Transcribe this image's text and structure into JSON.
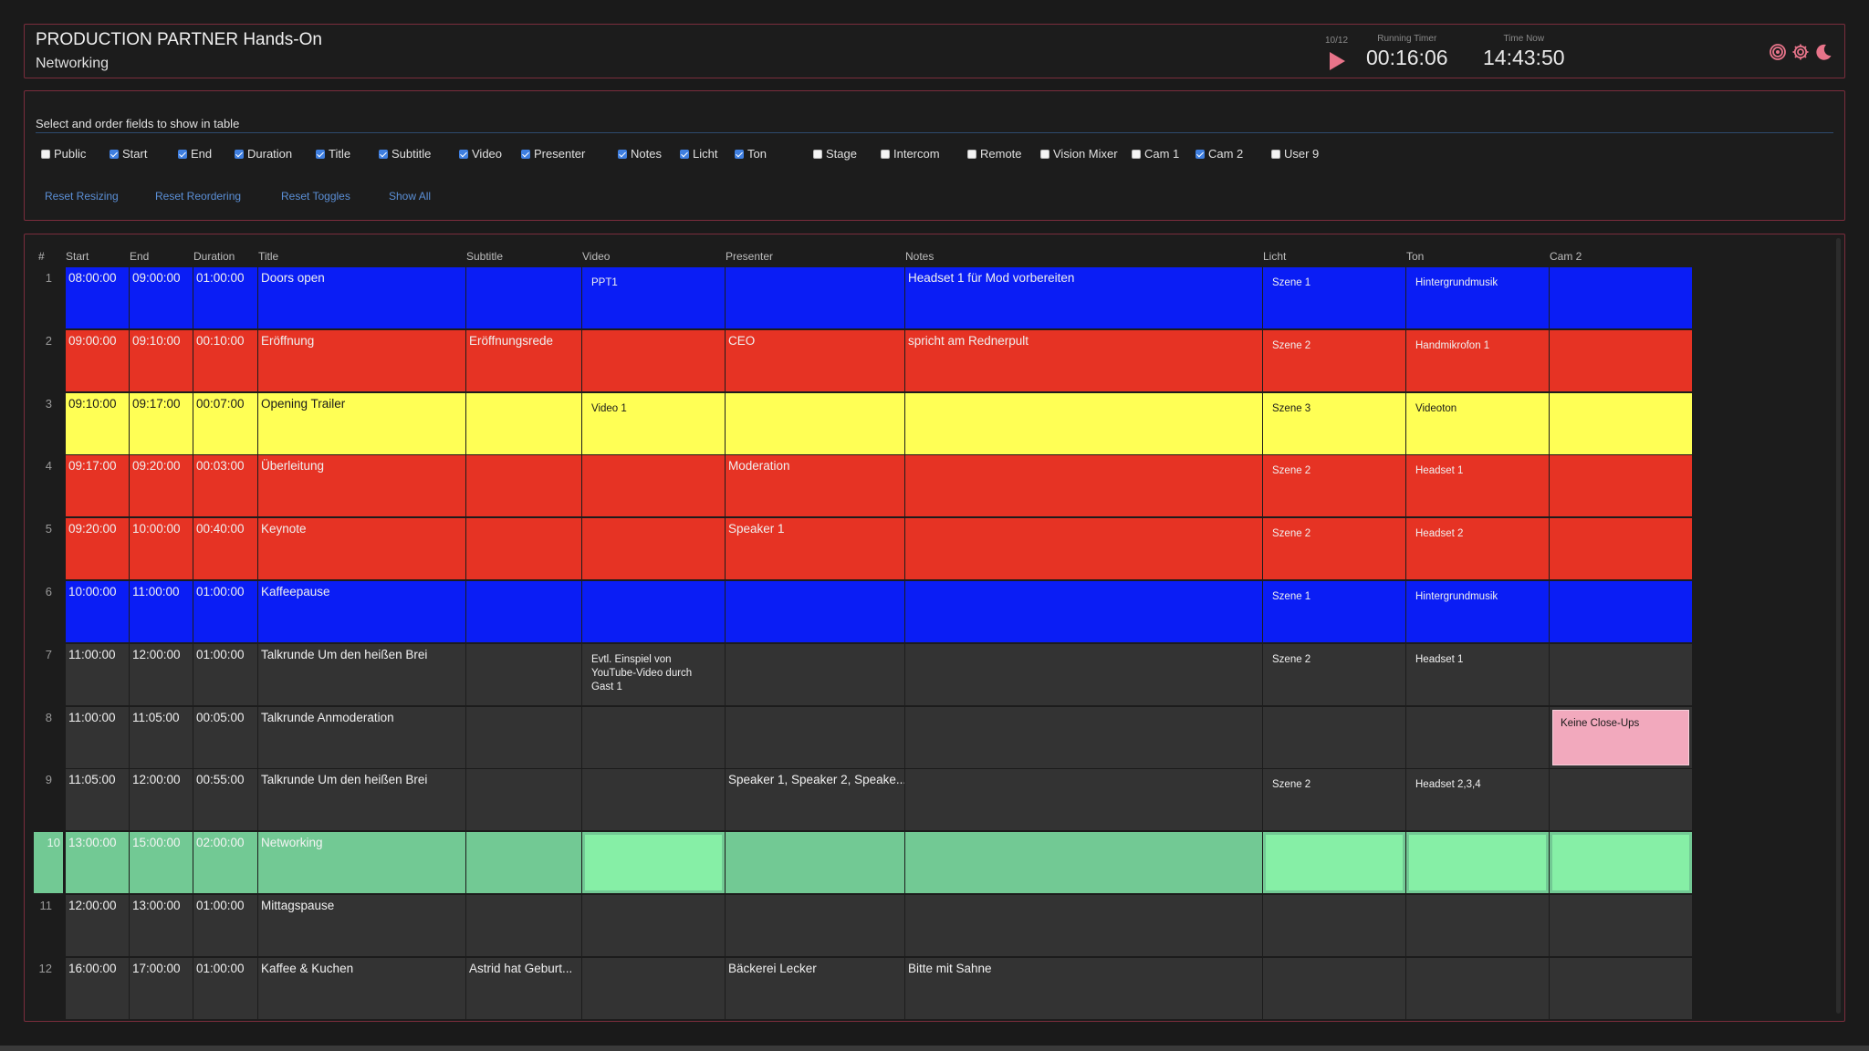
{
  "header": {
    "title": "PRODUCTION PARTNER Hands-On",
    "subtitle": "Networking",
    "counter": "10/12",
    "running_timer_label": "Running Timer",
    "running_timer": "00:16:06",
    "time_now_label": "Time Now",
    "time_now": "14:43:50",
    "icons": [
      "target-icon",
      "gear-icon",
      "moon-icon"
    ],
    "accent": "#e8748a"
  },
  "fields": {
    "title": "Select and order fields to show in table",
    "toggles": [
      {
        "label": "Public",
        "checked": false
      },
      {
        "label": "Start",
        "checked": true
      },
      {
        "label": "End",
        "checked": true
      },
      {
        "label": "Duration",
        "checked": true
      },
      {
        "label": "Title",
        "checked": true
      },
      {
        "label": "Subtitle",
        "checked": true
      },
      {
        "label": "Video",
        "checked": true
      },
      {
        "label": "Presenter",
        "checked": true
      },
      {
        "label": "Notes",
        "checked": true
      },
      {
        "label": "Licht",
        "checked": true
      },
      {
        "label": "Ton",
        "checked": true
      },
      {
        "label": "Stage",
        "checked": false
      },
      {
        "label": "Intercom",
        "checked": false
      },
      {
        "label": "Remote",
        "checked": false
      },
      {
        "label": "Vision Mixer",
        "checked": false
      },
      {
        "label": "Cam 1",
        "checked": false
      },
      {
        "label": "Cam 2",
        "checked": true
      },
      {
        "label": "User 9",
        "checked": false
      }
    ],
    "buttons": [
      "Reset Resizing",
      "Reset Reordering",
      "Reset Toggles",
      "Show All"
    ]
  },
  "table": {
    "columns": [
      "#",
      "Start",
      "End",
      "Duration",
      "Title",
      "Subtitle",
      "Video",
      "Presenter",
      "Notes",
      "Licht",
      "Ton",
      "Cam 2"
    ],
    "colors": {
      "blue": "#0a1df5",
      "red": "#e63324",
      "yellow": "#ffff55",
      "gray": "#333333",
      "green": "#72c994",
      "green_light": "#86efa6",
      "pink": "#f2a9bd"
    },
    "rows": [
      {
        "num": "1",
        "color": "blue",
        "start": "08:00:00",
        "end": "09:00:00",
        "duration": "01:00:00",
        "title": "Doors open",
        "subtitle": "",
        "video": "PPT1",
        "presenter": "",
        "notes": "Headset 1 für Mod vorbereiten",
        "licht": "Szene 1",
        "ton": "Hintergrundmusik",
        "cam2": ""
      },
      {
        "num": "2",
        "color": "red",
        "start": "09:00:00",
        "end": "09:10:00",
        "duration": "00:10:00",
        "title": "Eröffnung",
        "subtitle": "Eröffnungsrede",
        "video": "",
        "presenter": "CEO",
        "notes": "spricht am Rednerpult",
        "licht": "Szene 2",
        "ton": "Handmikrofon 1",
        "cam2": ""
      },
      {
        "num": "3",
        "color": "yellow",
        "start": "09:10:00",
        "end": "09:17:00",
        "duration": "00:07:00",
        "title": "Opening Trailer",
        "subtitle": "",
        "video": "Video 1",
        "presenter": "",
        "notes": "",
        "licht": "Szene 3",
        "ton": "Videoton",
        "cam2": ""
      },
      {
        "num": "4",
        "color": "red",
        "start": "09:17:00",
        "end": "09:20:00",
        "duration": "00:03:00",
        "title": "Überleitung",
        "subtitle": "",
        "video": "",
        "presenter": "Moderation",
        "notes": "",
        "licht": "Szene 2",
        "ton": "Headset 1",
        "cam2": ""
      },
      {
        "num": "5",
        "color": "red",
        "start": "09:20:00",
        "end": "10:00:00",
        "duration": "00:40:00",
        "title": "Keynote",
        "subtitle": "",
        "video": "",
        "presenter": "Speaker 1",
        "notes": "",
        "licht": "Szene 2",
        "ton": "Headset 2",
        "cam2": ""
      },
      {
        "num": "6",
        "color": "blue",
        "start": "10:00:00",
        "end": "11:00:00",
        "duration": "01:00:00",
        "title": "Kaffeepause",
        "subtitle": "",
        "video": "",
        "presenter": "",
        "notes": "",
        "licht": "Szene 1",
        "ton": "Hintergrundmusik",
        "cam2": ""
      },
      {
        "num": "7",
        "color": "gray",
        "start": "11:00:00",
        "end": "12:00:00",
        "duration": "01:00:00",
        "title": "Talkrunde Um den heißen Brei",
        "subtitle": "",
        "video": "Evtl. Einspiel von YouTube-Video durch Gast 1",
        "presenter": "",
        "notes": "",
        "licht": "Szene 2",
        "ton": "Headset 1",
        "cam2": ""
      },
      {
        "num": "8",
        "color": "gray",
        "start": "11:00:00",
        "end": "11:05:00",
        "duration": "00:05:00",
        "title": "Talkrunde Anmoderation",
        "subtitle": "",
        "video": "",
        "presenter": "",
        "notes": "",
        "licht": "",
        "ton": "",
        "cam2": "Keine Close-Ups"
      },
      {
        "num": "9",
        "color": "gray",
        "start": "11:05:00",
        "end": "12:00:00",
        "duration": "00:55:00",
        "title": "Talkrunde Um den heißen Brei",
        "subtitle": "",
        "video": "",
        "presenter": "Speaker 1, Speaker 2, Speake...",
        "notes": "",
        "licht": "Szene 2",
        "ton": "Headset 2,3,4",
        "cam2": ""
      },
      {
        "num": "10",
        "color": "green",
        "start": "13:00:00",
        "end": "15:00:00",
        "duration": "02:00:00",
        "title": "Networking",
        "subtitle": "",
        "video": "",
        "presenter": "",
        "notes": "",
        "licht": "",
        "ton": "",
        "cam2": ""
      },
      {
        "num": "11",
        "color": "gray",
        "start": "12:00:00",
        "end": "13:00:00",
        "duration": "01:00:00",
        "title": "Mittagspause",
        "subtitle": "",
        "video": "",
        "presenter": "",
        "notes": "",
        "licht": "",
        "ton": "",
        "cam2": ""
      },
      {
        "num": "12",
        "color": "gray",
        "start": "16:00:00",
        "end": "17:00:00",
        "duration": "01:00:00",
        "title": "Kaffee & Kuchen",
        "subtitle": "Astrid hat Geburt...",
        "video": "",
        "presenter": "Bäckerei Lecker",
        "notes": "Bitte mit Sahne",
        "licht": "",
        "ton": "",
        "cam2": ""
      }
    ]
  }
}
